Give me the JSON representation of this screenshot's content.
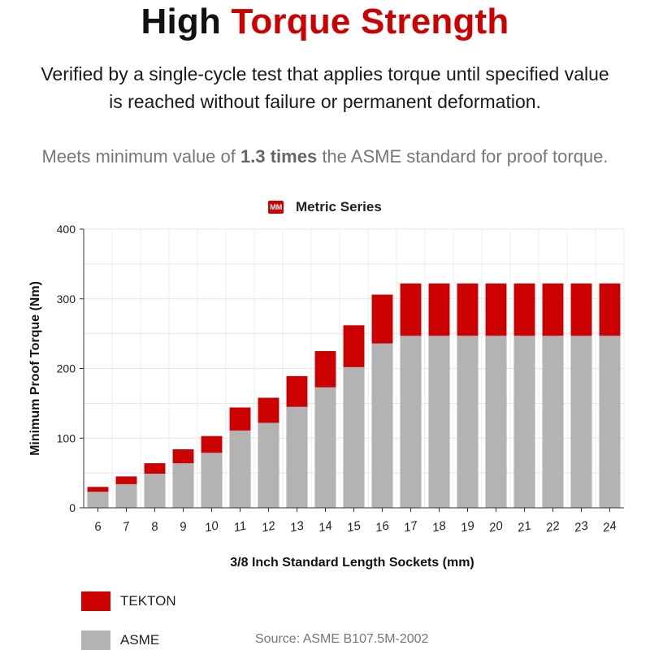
{
  "header": {
    "title_main": "High",
    "title_accent": "Torque Strength",
    "description": "Verified by a single-cycle test that applies torque until specified value is reached without failure or permanent deformation.",
    "meets_prefix": "Meets minimum value of",
    "meets_bold": "1.3 times",
    "meets_suffix": "the ASME standard for proof torque."
  },
  "series_legend": {
    "badge": "MM",
    "label": "Metric Series"
  },
  "colors": {
    "tekton": "#cc0000",
    "asme": "#b3b3b3",
    "accent": "#cc0000"
  },
  "chart_data": {
    "type": "bar",
    "stacked": "overlay",
    "xlabel": "3/8 Inch Standard Length Sockets (mm)",
    "ylabel": "Minimum Proof Torque (Nm)",
    "ylim": [
      0,
      400
    ],
    "yticks": [
      0,
      100,
      200,
      300,
      400
    ],
    "grid": true,
    "categories": [
      "6",
      "7",
      "8",
      "9",
      "10",
      "11",
      "12",
      "13",
      "14",
      "15",
      "16",
      "17",
      "18",
      "19",
      "20",
      "21",
      "22",
      "23",
      "24"
    ],
    "series": [
      {
        "name": "TEKTON",
        "values": [
          30,
          45,
          64,
          84,
          103,
          144,
          158,
          189,
          225,
          262,
          306,
          322,
          322,
          322,
          322,
          322,
          322,
          322,
          322
        ]
      },
      {
        "name": "ASME",
        "values": [
          23,
          34,
          49,
          64,
          79,
          111,
          122,
          145,
          173,
          202,
          236,
          247,
          247,
          247,
          247,
          247,
          247,
          247,
          247
        ]
      }
    ]
  },
  "legend": {
    "items": [
      {
        "label": "TEKTON"
      },
      {
        "label": "ASME"
      }
    ]
  },
  "source": "Source: ASME B107.5M-2002"
}
